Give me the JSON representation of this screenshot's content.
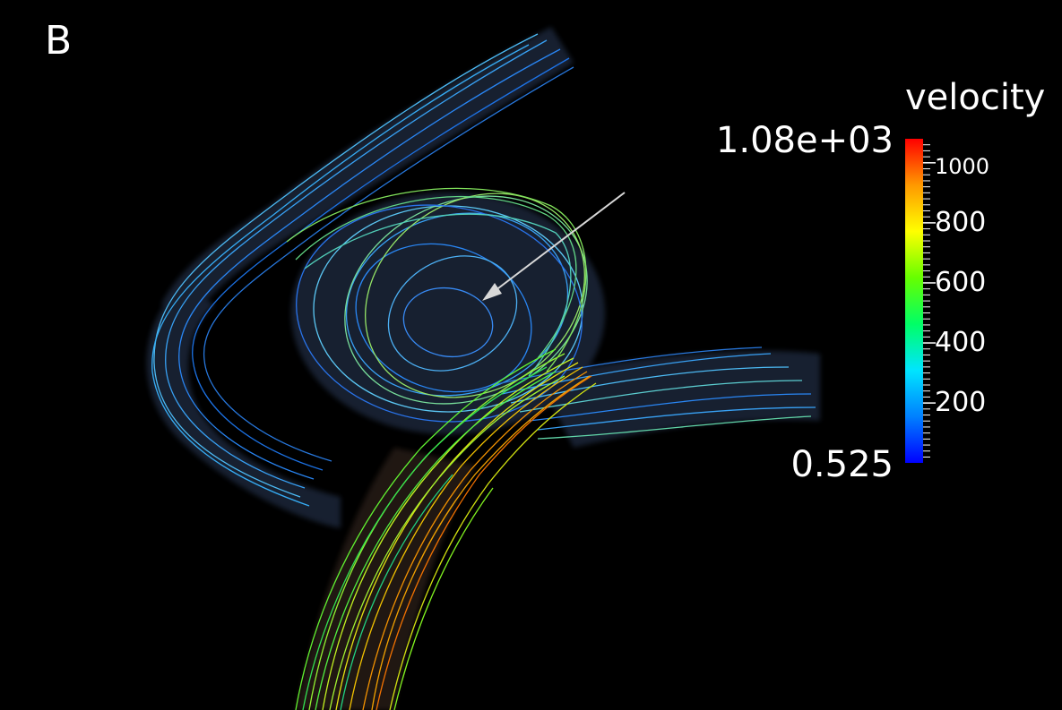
{
  "panel_label": "B",
  "legend": {
    "title": "velocity",
    "max_label": "1.08e+03",
    "min_label": "0.525",
    "min": 0.525,
    "max": 1080,
    "ticks": [
      {
        "value": 1000,
        "label": "1000"
      },
      {
        "value": 800,
        "label": "800"
      },
      {
        "value": 600,
        "label": "600"
      },
      {
        "value": 400,
        "label": "400"
      },
      {
        "value": 200,
        "label": "200"
      }
    ],
    "colormap": [
      "#0000ff",
      "#0080ff",
      "#00e5ff",
      "#00ff66",
      "#66ff00",
      "#ffff00",
      "#ff9900",
      "#ff0000"
    ]
  },
  "colors": {
    "background": "#000000",
    "vessel": "#2a3a58",
    "arrow": "#d8d8d8"
  }
}
